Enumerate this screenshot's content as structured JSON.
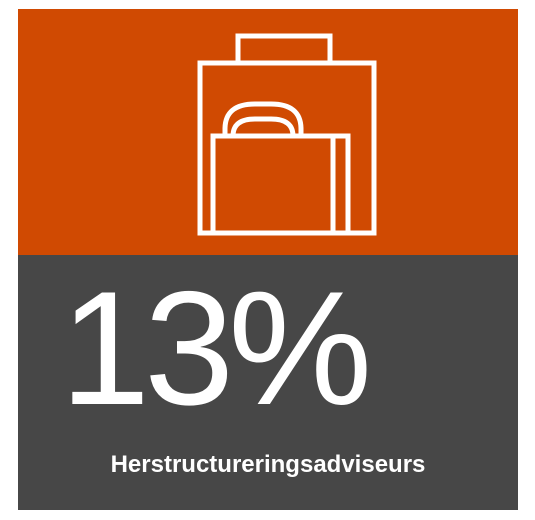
{
  "stat": {
    "value": "13%",
    "label": "Herstructureringsadviseurs"
  }
}
